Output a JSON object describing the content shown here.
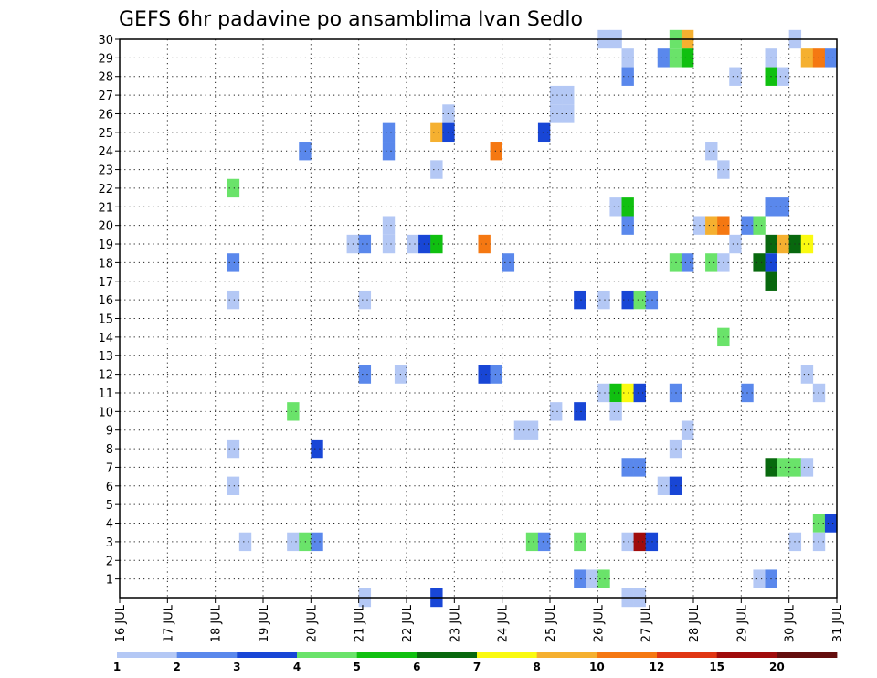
{
  "chart_data": {
    "type": "heatmap",
    "title": "GEFS 6hr padavine po ansamblima Ivan Sedlo",
    "xlabel": "",
    "ylabel": "",
    "y_ticks": [
      "1",
      "2",
      "3",
      "4",
      "5",
      "6",
      "7",
      "8",
      "9",
      "10",
      "11",
      "12",
      "13",
      "14",
      "15",
      "16",
      "17",
      "18",
      "19",
      "20",
      "21",
      "22",
      "23",
      "24",
      "25",
      "26",
      "27",
      "28",
      "29",
      "30"
    ],
    "x_ticks": [
      "16 JUL",
      "17 JUL",
      "18 JUL",
      "19 JUL",
      "20 JUL",
      "21 JUL",
      "22 JUL",
      "23 JUL",
      "24 JUL",
      "25 JUL",
      "26 JUL",
      "27 JUL",
      "28 JUL",
      "29 JUL",
      "30 JUL",
      "31 JUL"
    ],
    "x_unit": "day of July",
    "xlim": [
      16,
      31
    ],
    "ylim": [
      0,
      30
    ],
    "grid": true,
    "legend": {
      "placement": "bottom",
      "labels": [
        "1",
        "2",
        "3",
        "4",
        "5",
        "6",
        "7",
        "8",
        "10",
        "12",
        "15",
        "20"
      ],
      "colors": [
        "#b4c8f5",
        "#5a88ec",
        "#1846d6",
        "#6ae36a",
        "#10c010",
        "#08680e",
        "#fafa10",
        "#f5b030",
        "#f57812",
        "#e03614",
        "#a00c0c",
        "#640e0e"
      ]
    },
    "colors": [
      "#b4c8f5",
      "#5a88ec",
      "#1846d6",
      "#6ae36a",
      "#10c010",
      "#08680e",
      "#fafa10",
      "#f5b030",
      "#f57812",
      "#e03614",
      "#a00c0c",
      "#640e0e"
    ],
    "cells": [
      {
        "x": 26.0,
        "y": 30,
        "c": 0
      },
      {
        "x": 26.25,
        "y": 30,
        "c": 0
      },
      {
        "x": 27.5,
        "y": 30,
        "c": 3
      },
      {
        "x": 27.75,
        "y": 30,
        "c": 7
      },
      {
        "x": 30.0,
        "y": 30,
        "c": 0
      },
      {
        "x": 26.5,
        "y": 29,
        "c": 0
      },
      {
        "x": 27.25,
        "y": 29,
        "c": 1
      },
      {
        "x": 27.5,
        "y": 29,
        "c": 3
      },
      {
        "x": 27.75,
        "y": 29,
        "c": 4
      },
      {
        "x": 29.5,
        "y": 29,
        "c": 0
      },
      {
        "x": 30.25,
        "y": 29,
        "c": 7
      },
      {
        "x": 30.5,
        "y": 29,
        "c": 8
      },
      {
        "x": 30.75,
        "y": 29,
        "c": 1
      },
      {
        "x": 26.5,
        "y": 28,
        "c": 1
      },
      {
        "x": 28.75,
        "y": 28,
        "c": 0
      },
      {
        "x": 29.5,
        "y": 28,
        "c": 4
      },
      {
        "x": 29.75,
        "y": 28,
        "c": 0
      },
      {
        "x": 25.0,
        "y": 27,
        "c": 0
      },
      {
        "x": 25.25,
        "y": 27,
        "c": 0
      },
      {
        "x": 25.0,
        "y": 26,
        "c": 0
      },
      {
        "x": 25.25,
        "y": 26,
        "c": 0
      },
      {
        "x": 22.75,
        "y": 26,
        "c": 0
      },
      {
        "x": 21.5,
        "y": 25,
        "c": 1
      },
      {
        "x": 22.5,
        "y": 25,
        "c": 7
      },
      {
        "x": 22.75,
        "y": 25,
        "c": 2
      },
      {
        "x": 24.75,
        "y": 25,
        "c": 2
      },
      {
        "x": 19.75,
        "y": 24,
        "c": 1
      },
      {
        "x": 21.5,
        "y": 24,
        "c": 1
      },
      {
        "x": 23.75,
        "y": 24,
        "c": 8
      },
      {
        "x": 28.25,
        "y": 24,
        "c": 0
      },
      {
        "x": 22.5,
        "y": 23,
        "c": 0
      },
      {
        "x": 28.5,
        "y": 23,
        "c": 0
      },
      {
        "x": 18.25,
        "y": 22,
        "c": 3
      },
      {
        "x": 26.25,
        "y": 21,
        "c": 0
      },
      {
        "x": 26.5,
        "y": 21,
        "c": 4
      },
      {
        "x": 29.5,
        "y": 21,
        "c": 1
      },
      {
        "x": 29.75,
        "y": 21,
        "c": 1
      },
      {
        "x": 21.5,
        "y": 20,
        "c": 0
      },
      {
        "x": 26.5,
        "y": 20,
        "c": 1
      },
      {
        "x": 28.0,
        "y": 20,
        "c": 0
      },
      {
        "x": 28.25,
        "y": 20,
        "c": 7
      },
      {
        "x": 28.5,
        "y": 20,
        "c": 8
      },
      {
        "x": 29.0,
        "y": 20,
        "c": 1
      },
      {
        "x": 29.25,
        "y": 20,
        "c": 3
      },
      {
        "x": 20.75,
        "y": 19,
        "c": 0
      },
      {
        "x": 21.0,
        "y": 19,
        "c": 1
      },
      {
        "x": 21.5,
        "y": 19,
        "c": 0
      },
      {
        "x": 22.0,
        "y": 19,
        "c": 0
      },
      {
        "x": 22.25,
        "y": 19,
        "c": 2
      },
      {
        "x": 22.5,
        "y": 19,
        "c": 4
      },
      {
        "x": 23.5,
        "y": 19,
        "c": 8
      },
      {
        "x": 28.75,
        "y": 19,
        "c": 0
      },
      {
        "x": 29.5,
        "y": 19,
        "c": 5
      },
      {
        "x": 29.75,
        "y": 19,
        "c": 7
      },
      {
        "x": 30.0,
        "y": 19,
        "c": 5
      },
      {
        "x": 30.25,
        "y": 19,
        "c": 6
      },
      {
        "x": 18.25,
        "y": 18,
        "c": 1
      },
      {
        "x": 24.0,
        "y": 18,
        "c": 1
      },
      {
        "x": 27.5,
        "y": 18,
        "c": 3
      },
      {
        "x": 27.75,
        "y": 18,
        "c": 1
      },
      {
        "x": 28.25,
        "y": 18,
        "c": 3
      },
      {
        "x": 28.5,
        "y": 18,
        "c": 0
      },
      {
        "x": 29.25,
        "y": 18,
        "c": 5
      },
      {
        "x": 29.5,
        "y": 18,
        "c": 2
      },
      {
        "x": 29.5,
        "y": 17,
        "c": 5
      },
      {
        "x": 18.25,
        "y": 16,
        "c": 0
      },
      {
        "x": 21.0,
        "y": 16,
        "c": 0
      },
      {
        "x": 25.5,
        "y": 16,
        "c": 2
      },
      {
        "x": 26.0,
        "y": 16,
        "c": 0
      },
      {
        "x": 26.5,
        "y": 16,
        "c": 2
      },
      {
        "x": 26.75,
        "y": 16,
        "c": 3
      },
      {
        "x": 27.0,
        "y": 16,
        "c": 1
      },
      {
        "x": 28.5,
        "y": 14,
        "c": 3
      },
      {
        "x": 21.0,
        "y": 12,
        "c": 1
      },
      {
        "x": 21.75,
        "y": 12,
        "c": 0
      },
      {
        "x": 23.5,
        "y": 12,
        "c": 2
      },
      {
        "x": 23.75,
        "y": 12,
        "c": 1
      },
      {
        "x": 30.25,
        "y": 12,
        "c": 0
      },
      {
        "x": 26.0,
        "y": 11,
        "c": 0
      },
      {
        "x": 26.25,
        "y": 11,
        "c": 4
      },
      {
        "x": 26.5,
        "y": 11,
        "c": 6
      },
      {
        "x": 26.75,
        "y": 11,
        "c": 2
      },
      {
        "x": 27.5,
        "y": 11,
        "c": 1
      },
      {
        "x": 29.0,
        "y": 11,
        "c": 1
      },
      {
        "x": 30.5,
        "y": 11,
        "c": 0
      },
      {
        "x": 19.5,
        "y": 10,
        "c": 3
      },
      {
        "x": 25.0,
        "y": 10,
        "c": 0
      },
      {
        "x": 25.5,
        "y": 10,
        "c": 2
      },
      {
        "x": 26.25,
        "y": 10,
        "c": 0
      },
      {
        "x": 24.25,
        "y": 9,
        "c": 0
      },
      {
        "x": 24.5,
        "y": 9,
        "c": 0
      },
      {
        "x": 27.75,
        "y": 9,
        "c": 0
      },
      {
        "x": 18.25,
        "y": 8,
        "c": 0
      },
      {
        "x": 20.0,
        "y": 8,
        "c": 2
      },
      {
        "x": 27.5,
        "y": 8,
        "c": 0
      },
      {
        "x": 26.5,
        "y": 7,
        "c": 1
      },
      {
        "x": 26.75,
        "y": 7,
        "c": 1
      },
      {
        "x": 29.5,
        "y": 7,
        "c": 5
      },
      {
        "x": 29.75,
        "y": 7,
        "c": 3
      },
      {
        "x": 30.0,
        "y": 7,
        "c": 3
      },
      {
        "x": 30.25,
        "y": 7,
        "c": 0
      },
      {
        "x": 18.25,
        "y": 6,
        "c": 0
      },
      {
        "x": 27.25,
        "y": 6,
        "c": 0
      },
      {
        "x": 27.5,
        "y": 6,
        "c": 2
      },
      {
        "x": 30.5,
        "y": 4,
        "c": 3
      },
      {
        "x": 30.75,
        "y": 4,
        "c": 2
      },
      {
        "x": 18.5,
        "y": 3,
        "c": 0
      },
      {
        "x": 19.5,
        "y": 3,
        "c": 0
      },
      {
        "x": 19.75,
        "y": 3,
        "c": 3
      },
      {
        "x": 20.0,
        "y": 3,
        "c": 1
      },
      {
        "x": 24.5,
        "y": 3,
        "c": 3
      },
      {
        "x": 24.75,
        "y": 3,
        "c": 1
      },
      {
        "x": 25.5,
        "y": 3,
        "c": 3
      },
      {
        "x": 26.5,
        "y": 3,
        "c": 0
      },
      {
        "x": 26.75,
        "y": 3,
        "c": 10
      },
      {
        "x": 27.0,
        "y": 3,
        "c": 2
      },
      {
        "x": 30.0,
        "y": 3,
        "c": 0
      },
      {
        "x": 30.5,
        "y": 3,
        "c": 0
      },
      {
        "x": 25.5,
        "y": 1,
        "c": 1
      },
      {
        "x": 25.75,
        "y": 1,
        "c": 0
      },
      {
        "x": 26.0,
        "y": 1,
        "c": 3
      },
      {
        "x": 29.25,
        "y": 1,
        "c": 0
      },
      {
        "x": 29.5,
        "y": 1,
        "c": 1
      },
      {
        "x": 21.0,
        "y": 0,
        "c": 0
      },
      {
        "x": 22.5,
        "y": 0,
        "c": 2
      },
      {
        "x": 26.5,
        "y": 0,
        "c": 0
      },
      {
        "x": 26.75,
        "y": 0,
        "c": 0
      }
    ]
  }
}
